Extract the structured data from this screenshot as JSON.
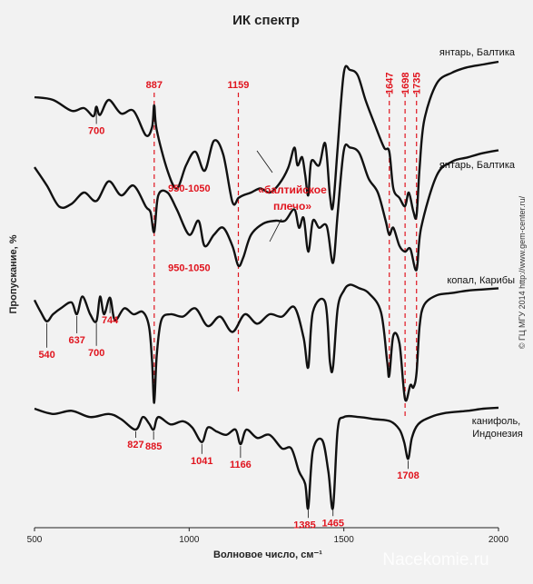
{
  "chart_data": {
    "type": "line",
    "title": "ИК спектр",
    "xlabel": "Волновое число, см⁻¹",
    "ylabel": "Пропускание, %",
    "xlim": [
      500,
      2000
    ],
    "x_ticks": [
      "500",
      "1000",
      "1500",
      "2000"
    ],
    "grid": false,
    "series": [
      {
        "name": "янтарь, Балтика",
        "x": [
          500,
          560,
          620,
          660,
          690,
          700,
          712,
          740,
          780,
          820,
          860,
          880,
          887,
          895,
          930,
          960,
          990,
          1020,
          1050,
          1080,
          1110,
          1140,
          1159,
          1175,
          1200,
          1230,
          1260,
          1290,
          1320,
          1340,
          1350,
          1365,
          1375,
          1385,
          1395,
          1420,
          1440,
          1455,
          1465,
          1480,
          1500,
          1520,
          1545,
          1570,
          1600,
          1630,
          1647,
          1660,
          1680,
          1698,
          1710,
          1725,
          1735,
          1745,
          1760,
          1800,
          1850,
          1900,
          1950,
          2000
        ],
        "y": [
          62,
          60,
          52,
          54,
          48,
          55,
          49,
          60,
          50,
          52,
          34,
          40,
          56,
          38,
          8,
          -5,
          12,
          22,
          8,
          30,
          20,
          -15,
          -12,
          -10,
          -8,
          -5,
          -8,
          -2,
          10,
          25,
          12,
          18,
          5,
          -10,
          15,
          12,
          28,
          -10,
          -18,
          25,
          80,
          82,
          78,
          60,
          42,
          25,
          22,
          -5,
          -12,
          -18,
          -8,
          -22,
          -25,
          10,
          45,
          72,
          80,
          84,
          86,
          88
        ]
      },
      {
        "name": "янтарь, Балтика",
        "x": [
          500,
          540,
          580,
          620,
          660,
          700,
          740,
          780,
          820,
          860,
          875,
          887,
          900,
          930,
          960,
          1000,
          1030,
          1050,
          1080,
          1110,
          1140,
          1159,
          1175,
          1200,
          1240,
          1280,
          1310,
          1340,
          1355,
          1370,
          1385,
          1400,
          1420,
          1445,
          1465,
          1480,
          1500,
          1520,
          1550,
          1580,
          1610,
          1635,
          1647,
          1660,
          1680,
          1698,
          1715,
          1735,
          1750,
          1800,
          1850,
          1900,
          1950,
          2000
        ],
        "y": [
          78,
          65,
          50,
          52,
          60,
          54,
          68,
          58,
          65,
          50,
          46,
          32,
          58,
          60,
          48,
          30,
          40,
          22,
          30,
          35,
          22,
          8,
          14,
          30,
          38,
          40,
          40,
          48,
          35,
          42,
          18,
          40,
          35,
          36,
          10,
          45,
          90,
          92,
          88,
          70,
          60,
          40,
          30,
          35,
          22,
          18,
          20,
          5,
          35,
          72,
          82,
          85,
          88,
          90
        ]
      },
      {
        "name": "копал, Карибы",
        "x": [
          500,
          520,
          540,
          560,
          590,
          620,
          637,
          655,
          680,
          700,
          712,
          725,
          744,
          760,
          790,
          820,
          850,
          870,
          880,
          887,
          895,
          910,
          940,
          980,
          1020,
          1060,
          1100,
          1140,
          1180,
          1220,
          1260,
          1300,
          1340,
          1370,
          1385,
          1400,
          1440,
          1455,
          1465,
          1480,
          1500,
          1520,
          1550,
          1580,
          1620,
          1640,
          1647,
          1660,
          1680,
          1698,
          1715,
          1725,
          1735,
          1745,
          1760,
          1800,
          1850,
          1900,
          1950,
          2000
        ],
        "y": [
          92,
          82,
          74,
          80,
          86,
          90,
          80,
          95,
          80,
          74,
          95,
          80,
          94,
          75,
          85,
          80,
          82,
          70,
          40,
          5,
          45,
          75,
          80,
          78,
          85,
          70,
          78,
          65,
          80,
          72,
          80,
          78,
          86,
          60,
          35,
          82,
          90,
          40,
          35,
          85,
          100,
          105,
          102,
          98,
          82,
          40,
          28,
          62,
          55,
          8,
          20,
          18,
          30,
          70,
          88,
          96,
          98,
          100,
          101,
          102
        ]
      },
      {
        "name": "канифоль, Индонезия",
        "x": [
          500,
          560,
          620,
          680,
          740,
          780,
          827,
          850,
          870,
          885,
          900,
          940,
          980,
          1010,
          1041,
          1060,
          1090,
          1120,
          1150,
          1166,
          1185,
          1220,
          1260,
          1300,
          1330,
          1355,
          1375,
          1385,
          1400,
          1430,
          1450,
          1465,
          1480,
          1500,
          1550,
          1600,
          1650,
          1680,
          1695,
          1708,
          1720,
          1740,
          1780,
          1830,
          1900,
          1950,
          2000
        ],
        "y": [
          100,
          95,
          98,
          92,
          95,
          90,
          80,
          92,
          86,
          80,
          92,
          85,
          88,
          82,
          68,
          82,
          78,
          75,
          80,
          66,
          80,
          72,
          75,
          62,
          62,
          40,
          28,
          5,
          60,
          70,
          40,
          5,
          80,
          92,
          92,
          90,
          88,
          80,
          68,
          52,
          72,
          85,
          92,
          96,
          98,
          100,
          101
        ]
      }
    ],
    "annotations": {
      "top_peaks": [
        "887",
        "1159",
        "1647",
        "1698",
        "1735"
      ],
      "amber1_labels": [
        "700",
        "950-1050"
      ],
      "amber2_labels": [
        "950-1050"
      ],
      "shoulder_text": [
        "«балтийское",
        "плечо»"
      ],
      "copal_labels": [
        "540",
        "637",
        "700",
        "744"
      ],
      "rosin_labels": [
        "827",
        "885",
        "1041",
        "1166",
        "1385",
        "1465",
        "1708"
      ]
    }
  },
  "credit": "© ГЦ МГУ 2014 http://www.gem-center.ru/",
  "watermark": "Nacekomie.ru",
  "colors": {
    "curve": "#111111",
    "accent": "#e0141e",
    "background": "#f2f2f2"
  }
}
